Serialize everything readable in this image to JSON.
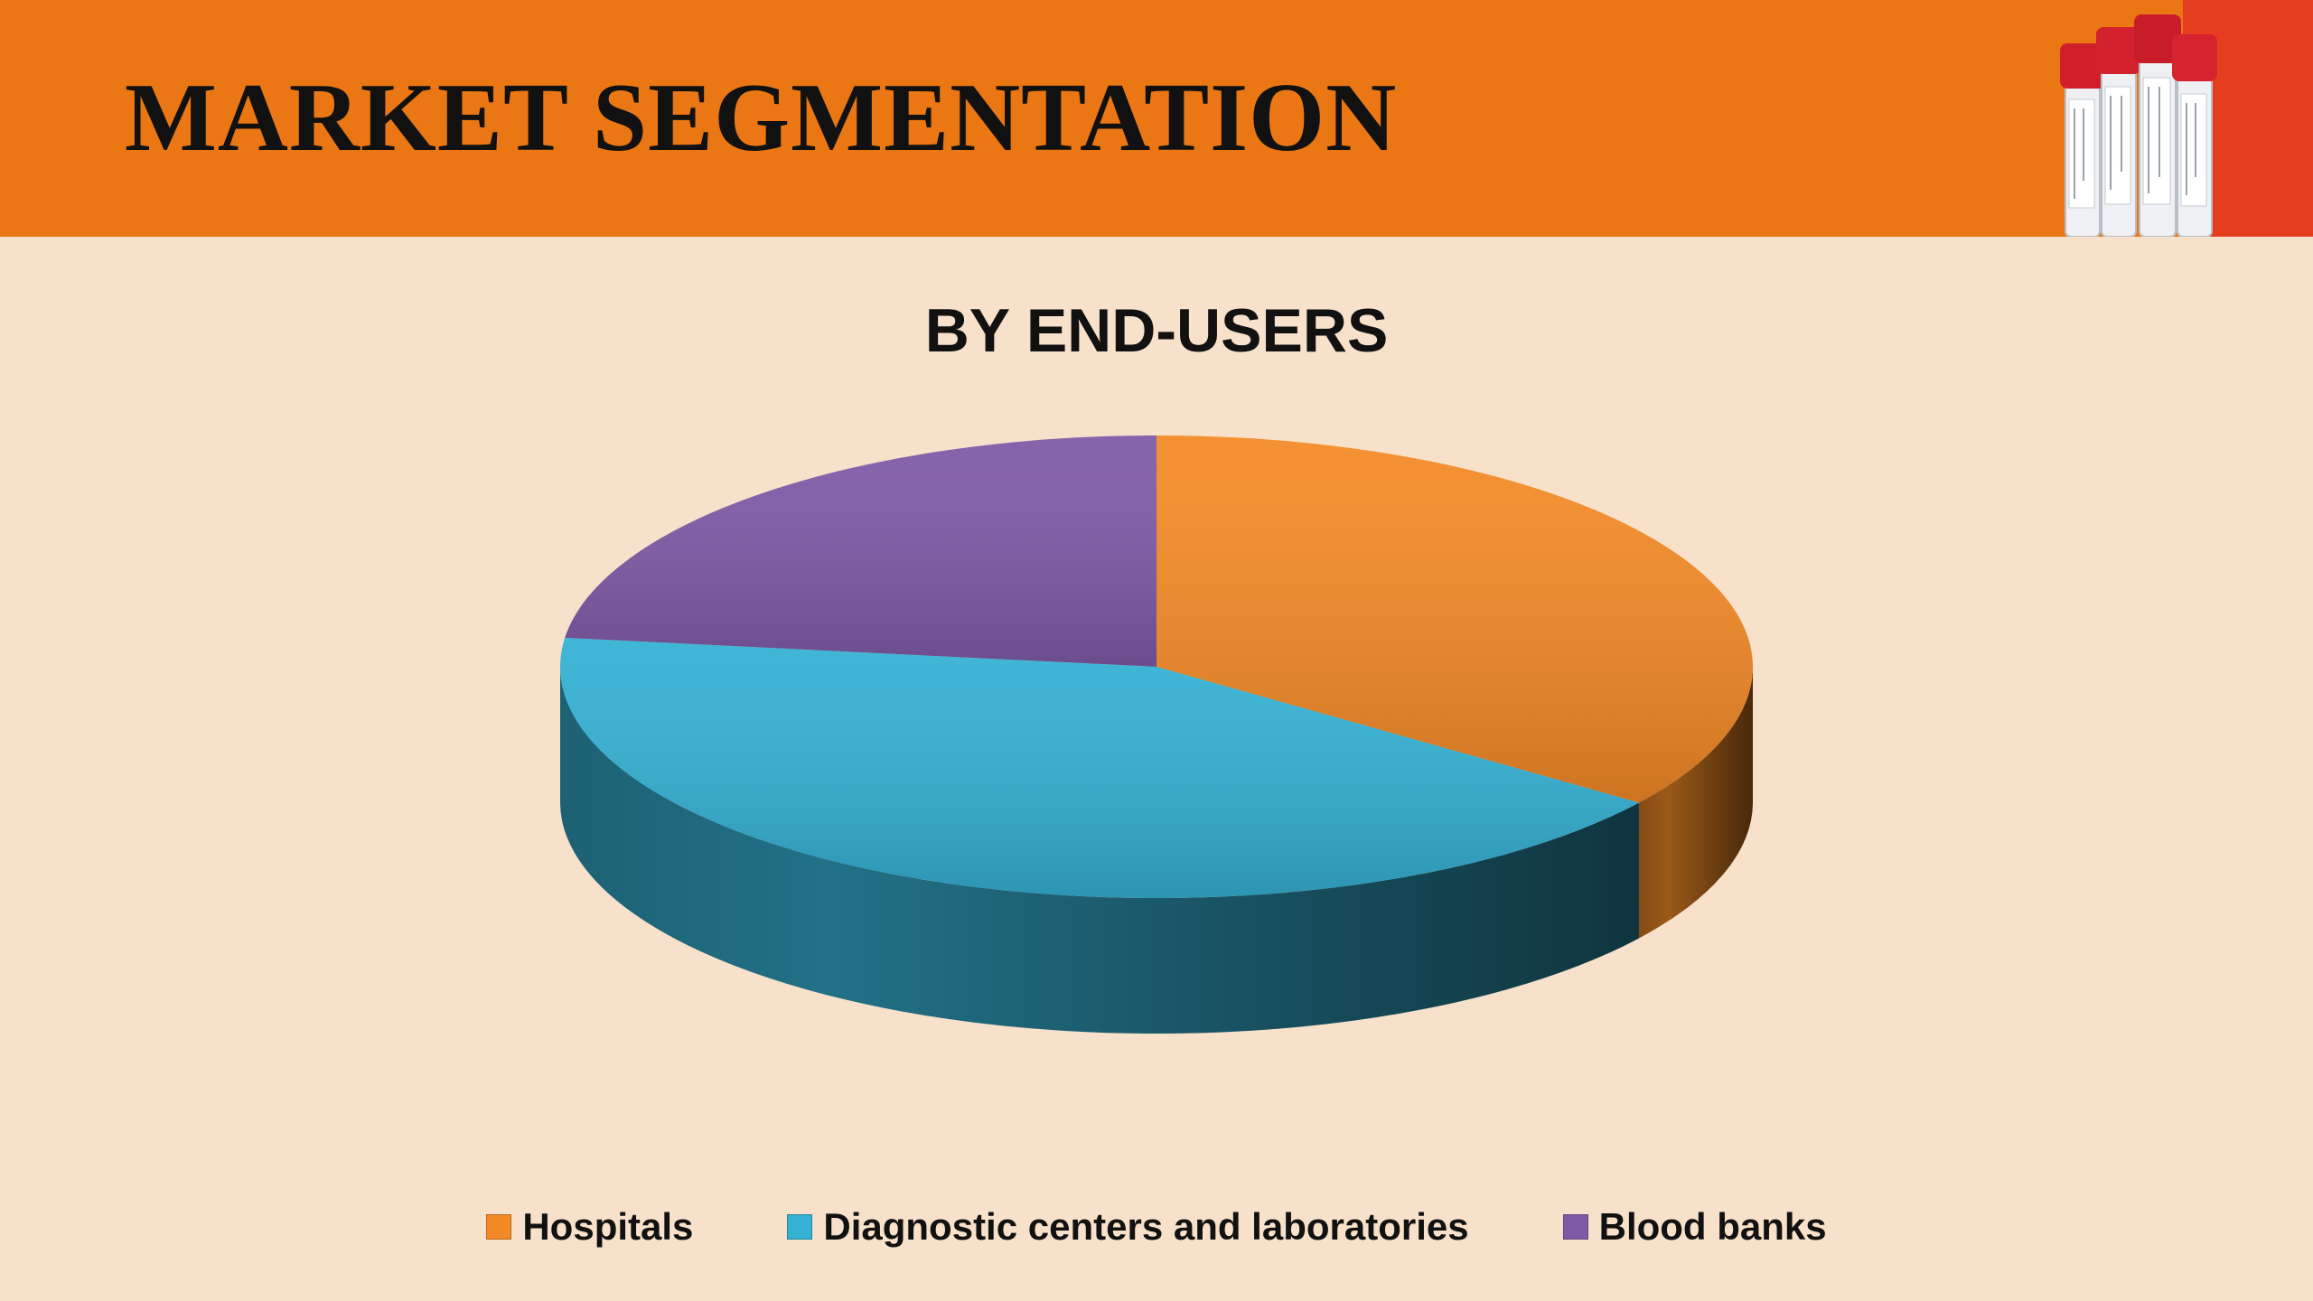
{
  "header": {
    "title": "MARKET SEGMENTATION",
    "background": "#ea7713",
    "accent_panel": "#e53e1f"
  },
  "chart_data": {
    "type": "pie",
    "style": "3d",
    "title": "BY END-USERS",
    "legend_position": "bottom",
    "slices": [
      {
        "label": "Hospitals",
        "value": 35,
        "color": "#f48a27"
      },
      {
        "label": "Diagnostic centers and laboratories",
        "value": 42,
        "color": "#34b1d4"
      },
      {
        "label": "Blood banks",
        "value": 23,
        "color": "#7f5aa7"
      }
    ]
  }
}
